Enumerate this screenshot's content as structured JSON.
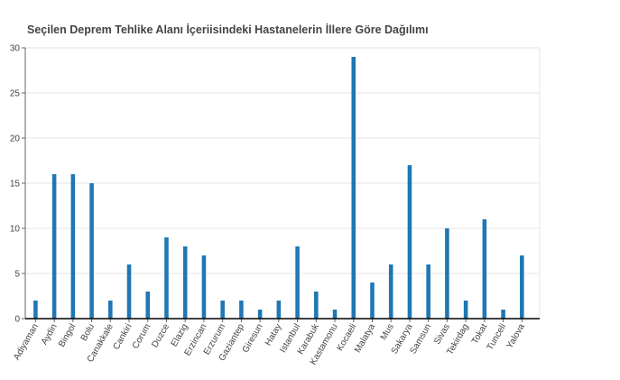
{
  "chart_data": {
    "type": "bar",
    "title": "Seçilen Deprem Tehlike Alanı İçeriisindeki Hastanelerin İllere Göre Dağılımı",
    "xlabel": "",
    "ylabel": "",
    "categories": [
      "Adiyaman",
      "Aydin",
      "Bingol",
      "Bolu",
      "Canakkale",
      "Cankiri",
      "Corum",
      "Duzce",
      "Elazig",
      "Erzincan",
      "Erzurum",
      "Gaziantep",
      "Giresun",
      "Hatay",
      "Istanbul",
      "Karabuk",
      "Kastamonu",
      "Kocaeli",
      "Malatya",
      "Mus",
      "Sakarya",
      "Samsun",
      "Sivas",
      "Tekirdag",
      "Tokat",
      "Tunceli",
      "Yalova"
    ],
    "values": [
      2,
      16,
      16,
      15,
      2,
      6,
      3,
      9,
      8,
      7,
      2,
      2,
      1,
      2,
      8,
      3,
      1,
      29,
      4,
      6,
      17,
      6,
      10,
      2,
      11,
      1,
      7
    ],
    "ylim": [
      0,
      30
    ],
    "yticks": [
      0,
      5,
      10,
      15,
      20,
      25,
      30
    ],
    "grid": true,
    "legend": "none",
    "colors": {
      "bar": "#1f77b4",
      "grid": "#e5e5e5",
      "axis": "#000000",
      "text": "#444444"
    }
  }
}
